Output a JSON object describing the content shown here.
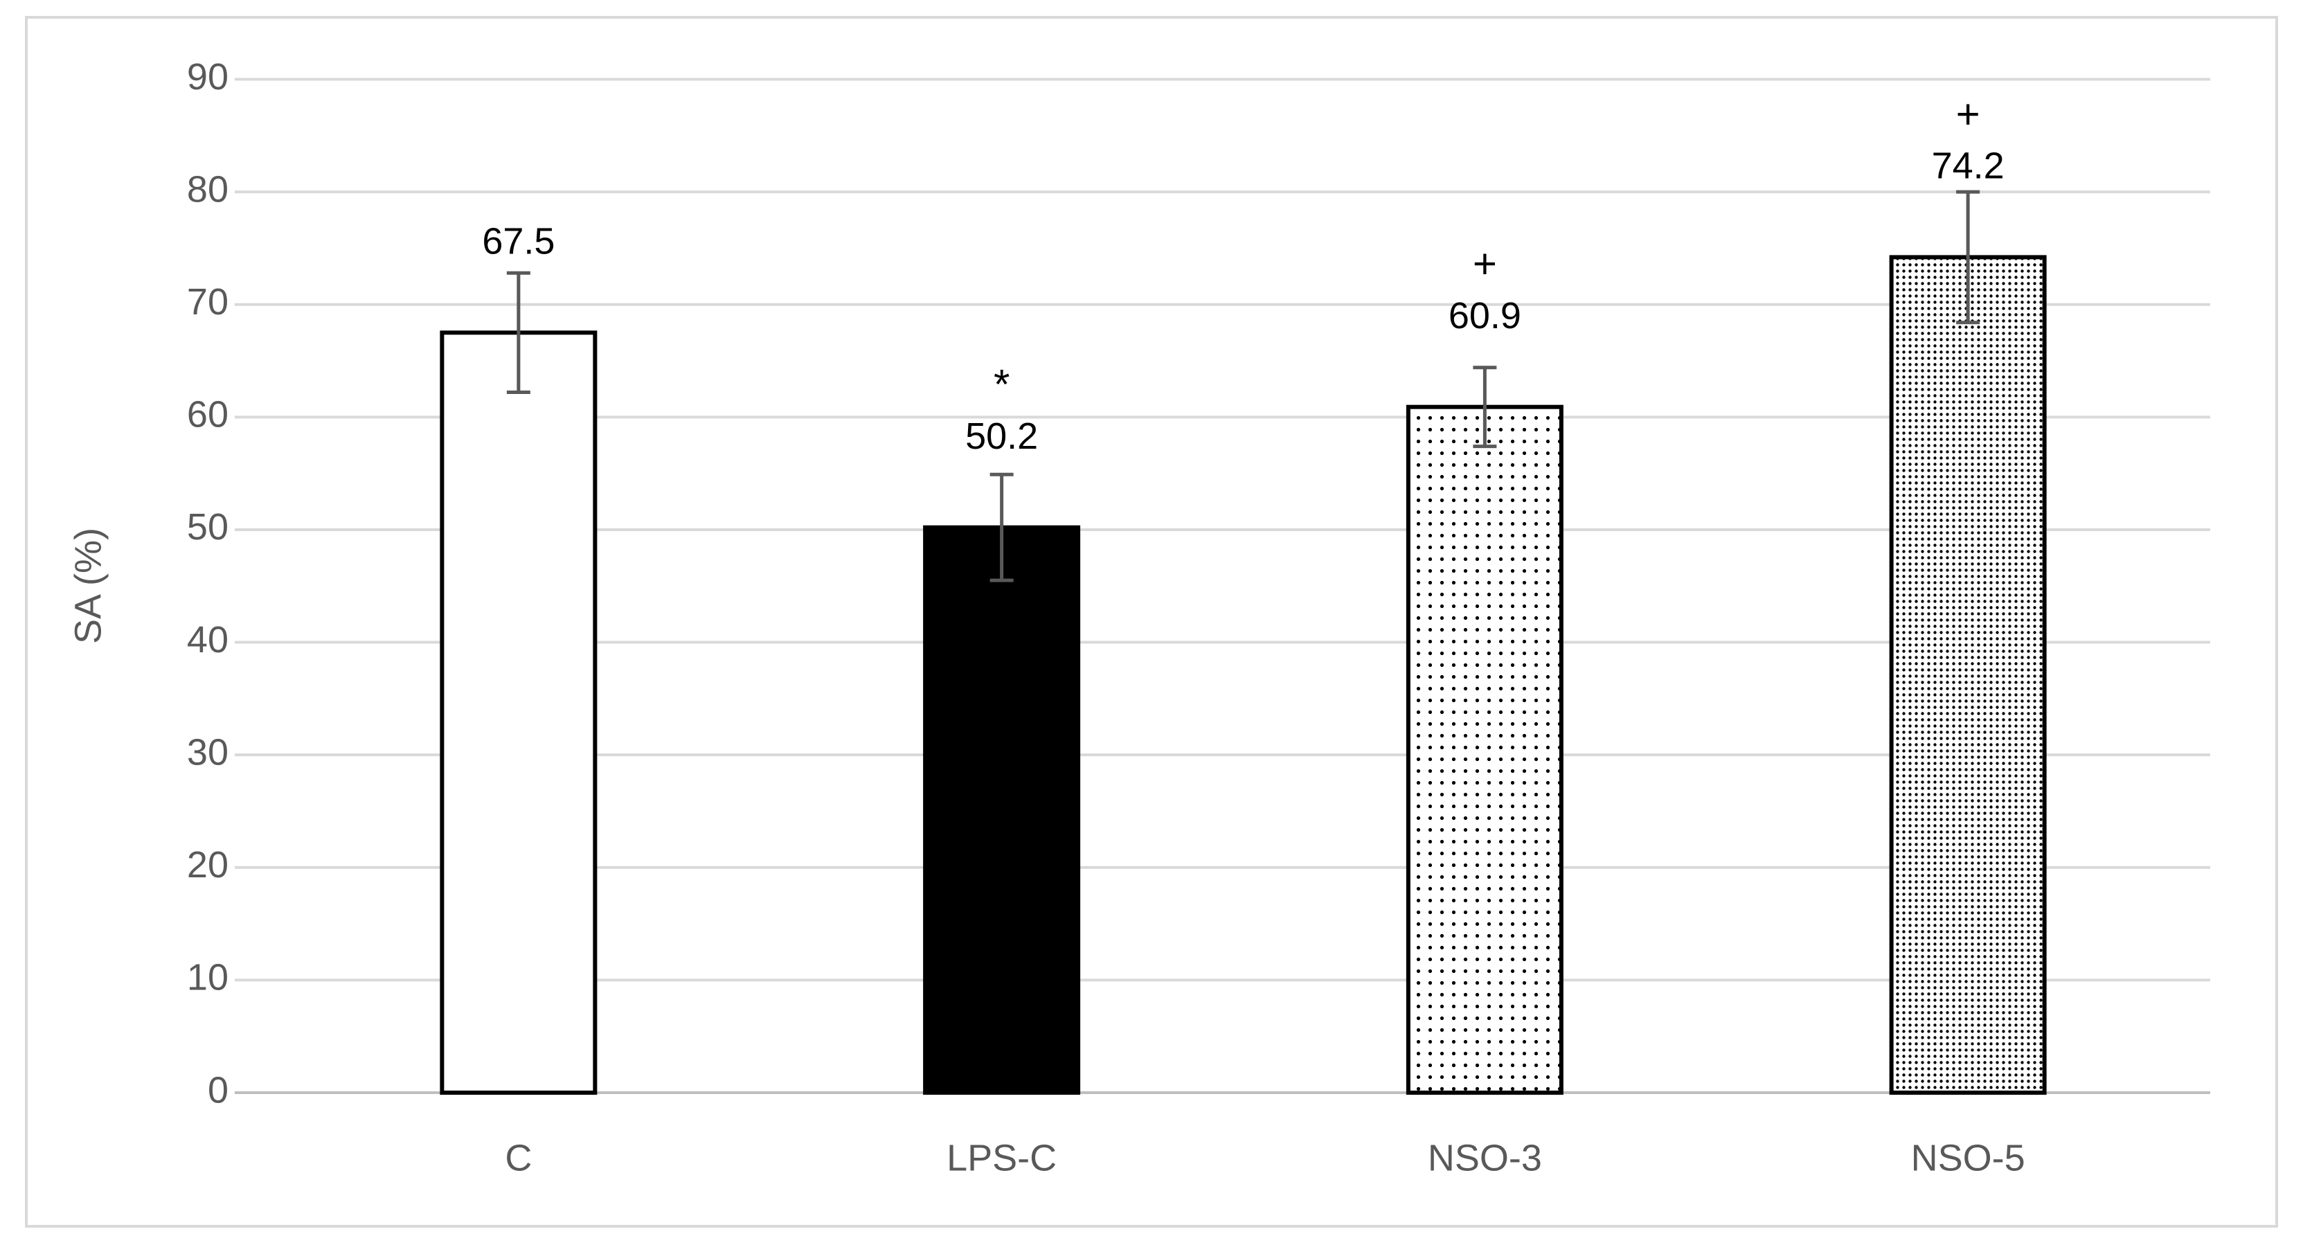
{
  "chart_data": {
    "type": "bar",
    "y_label": "SA (%)",
    "categories": [
      "C",
      "LPS-C",
      "NSO-3",
      "NSO-5"
    ],
    "values": [
      67.5,
      50.2,
      60.9,
      74.2
    ],
    "errors": [
      5.3,
      4.7,
      3.5,
      5.8
    ],
    "annotations": [
      null,
      "*",
      "+",
      "+"
    ],
    "colors": [
      "#ffffff",
      "#000000",
      "#ffffff",
      "#ffffff"
    ],
    "patterns": [
      null,
      null,
      "sparse-dots",
      "dense-dots"
    ],
    "ylim": [
      0,
      90
    ],
    "yticks": [
      0,
      10,
      20,
      30,
      40,
      50,
      60,
      70,
      80,
      90
    ],
    "grid": true
  }
}
